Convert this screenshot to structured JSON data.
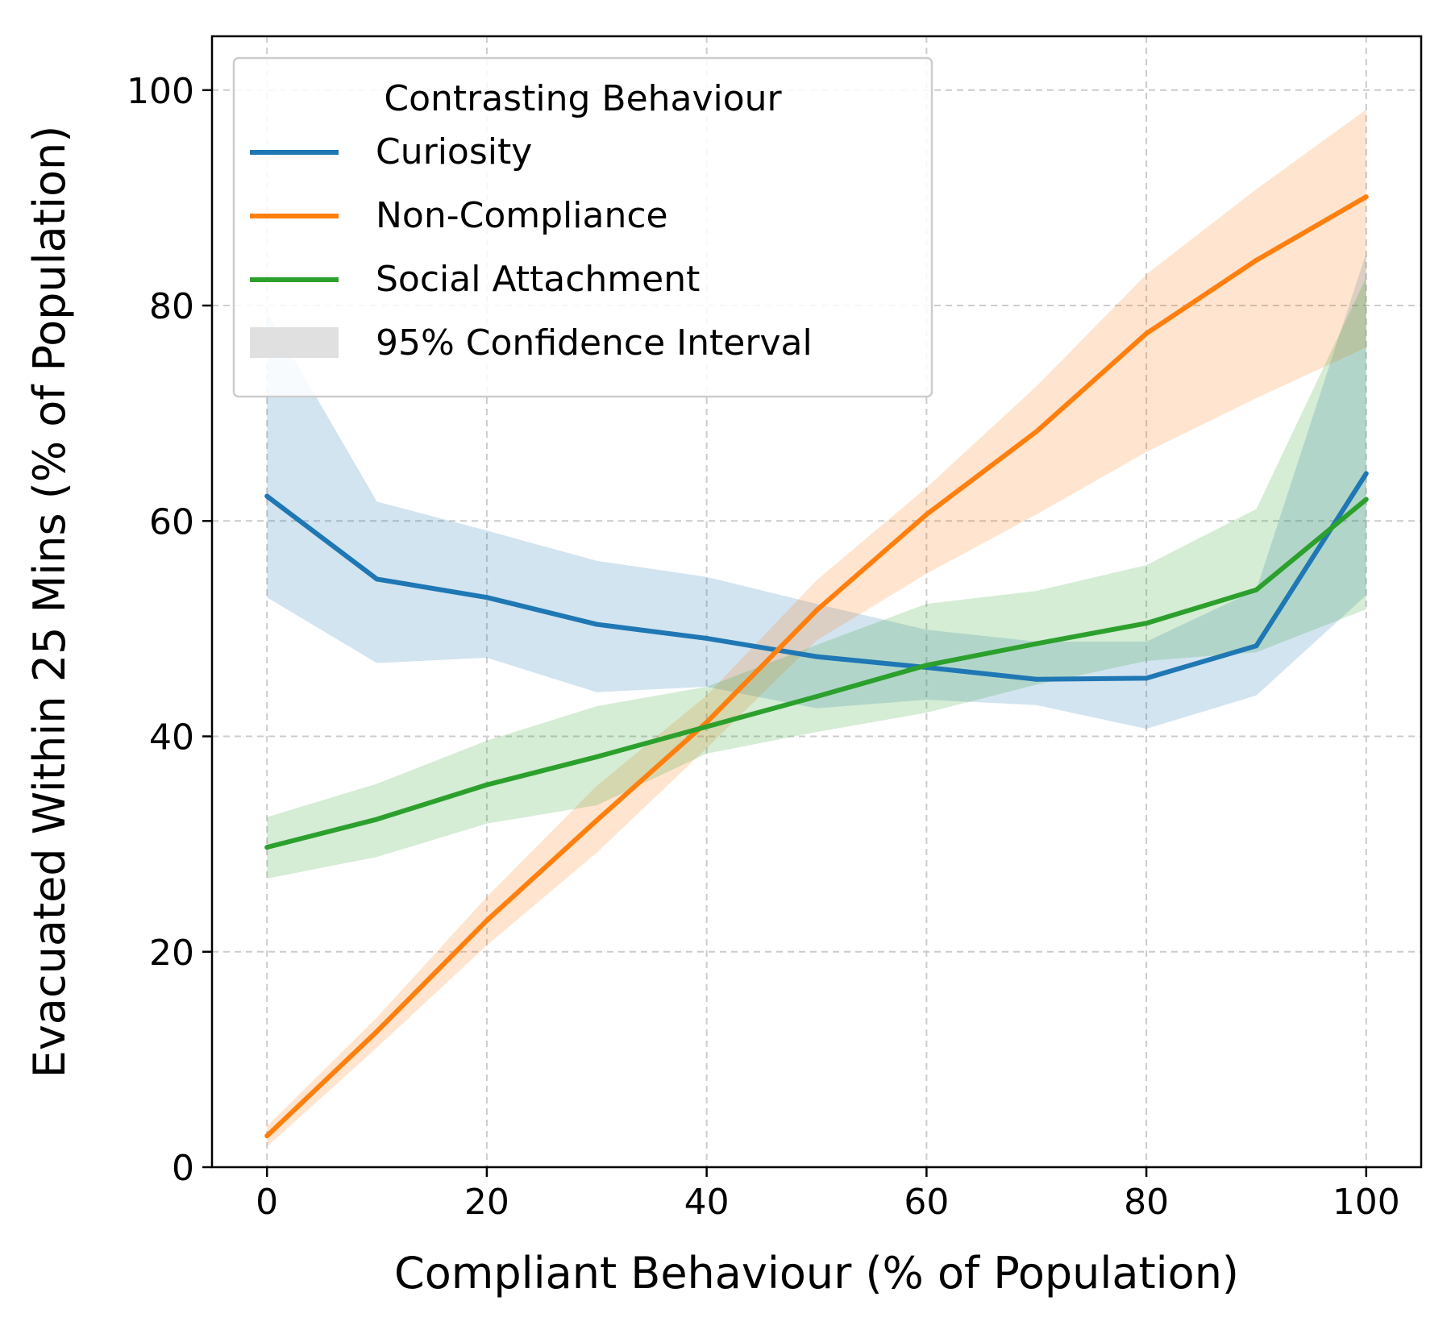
{
  "chart_data": {
    "type": "line",
    "xlabel": "Compliant Behaviour (% of Population)",
    "ylabel": "Evacuated Within 25 Mins (% of Population)",
    "xlim": [
      -5,
      105
    ],
    "ylim": [
      0,
      105
    ],
    "xticks": [
      0,
      20,
      40,
      60,
      80,
      100
    ],
    "yticks": [
      0,
      20,
      40,
      60,
      80,
      100
    ],
    "grid": true,
    "legend": {
      "title": "Contrasting Behaviour",
      "placement": "top-left",
      "ci_label": "95% Confidence Interval",
      "ci_color": "#e0e0e0"
    },
    "x": [
      0,
      10,
      20,
      30,
      40,
      50,
      60,
      70,
      80,
      90,
      100
    ],
    "series": [
      {
        "name": "Curiosity",
        "color": "#1f77b4",
        "values": [
          62.3,
          54.6,
          52.9,
          50.4,
          49.1,
          47.4,
          46.4,
          45.3,
          45.4,
          48.4,
          64.4
        ],
        "ci_lower": [
          52.9,
          46.8,
          47.3,
          44.1,
          44.6,
          42.6,
          43.4,
          42.9,
          40.7,
          43.8,
          53.1
        ],
        "ci_upper": [
          79.4,
          61.8,
          59.1,
          56.3,
          54.8,
          52.3,
          49.9,
          48.8,
          48.8,
          53.6,
          84.9
        ]
      },
      {
        "name": "Non-Compliance",
        "color": "#ff7f0e",
        "values": [
          2.9,
          12.6,
          22.9,
          32.2,
          41.3,
          51.7,
          60.6,
          68.3,
          77.4,
          84.2,
          90.1
        ],
        "ci_lower": [
          1.9,
          11.1,
          20.6,
          29.2,
          38.9,
          48.9,
          55.1,
          60.6,
          66.4,
          71.4,
          76.1
        ],
        "ci_upper": [
          3.8,
          13.9,
          25.1,
          35.4,
          43.8,
          54.5,
          63.1,
          72.5,
          82.9,
          90.8,
          98.2
        ]
      },
      {
        "name": "Social Attachment",
        "color": "#2ca02c",
        "values": [
          29.7,
          32.3,
          35.5,
          38.1,
          40.9,
          43.7,
          46.6,
          48.6,
          50.5,
          53.6,
          62.0
        ],
        "ci_lower": [
          26.8,
          28.8,
          31.9,
          33.6,
          38.4,
          40.4,
          42.2,
          44.8,
          47.0,
          47.8,
          51.8
        ],
        "ci_upper": [
          32.5,
          35.6,
          39.6,
          42.8,
          44.6,
          48.5,
          52.3,
          53.5,
          55.9,
          61.1,
          82.6
        ]
      }
    ]
  }
}
